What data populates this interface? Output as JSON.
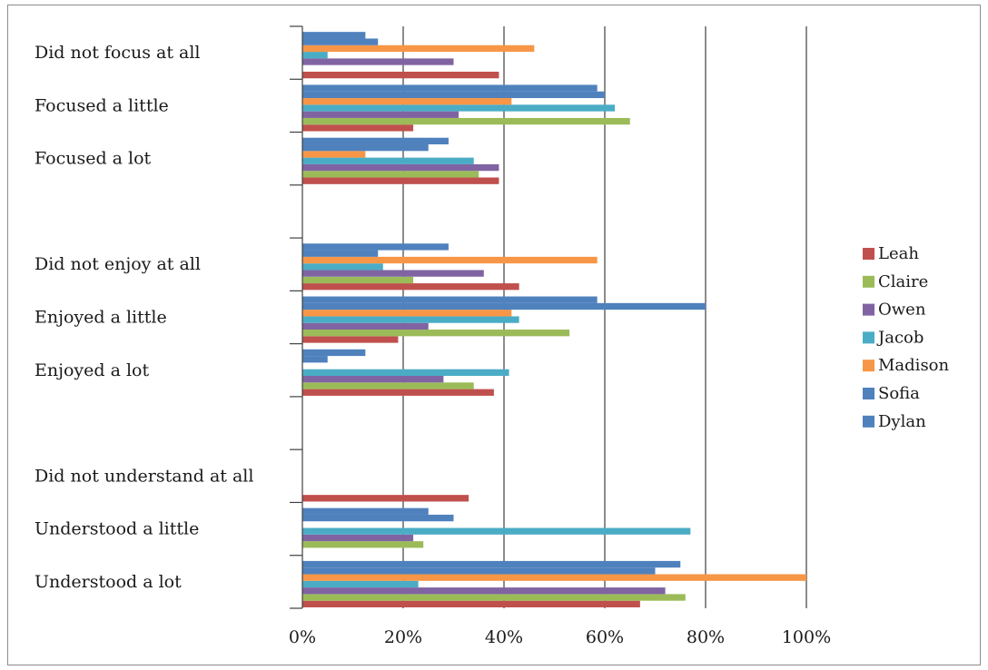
{
  "chart_data": {
    "type": "bar",
    "orientation": "horizontal",
    "categories": [
      "Did not focus at all",
      "Focused a little",
      "Focused a lot",
      "",
      "Did not enjoy at all",
      "Enjoyed a little",
      "Enjoyed a lot",
      "",
      "Did not understand at all",
      "Understood a little",
      "Understood a lot"
    ],
    "series": [
      {
        "name": "Leah",
        "color": "#C0504D",
        "values": [
          39,
          22,
          39,
          null,
          43,
          19,
          38,
          null,
          33,
          0,
          67
        ]
      },
      {
        "name": "Claire",
        "color": "#9BBB59",
        "values": [
          0,
          65,
          35,
          null,
          22,
          53,
          34,
          null,
          0,
          24,
          76
        ]
      },
      {
        "name": "Owen",
        "color": "#8064A2",
        "values": [
          30,
          31,
          39,
          null,
          36,
          25,
          28,
          null,
          0,
          22,
          72
        ]
      },
      {
        "name": "Jacob",
        "color": "#4BACC6",
        "values": [
          5,
          62,
          34,
          null,
          16,
          43,
          41,
          null,
          0,
          77,
          23
        ]
      },
      {
        "name": "Madison",
        "color": "#F79646",
        "values": [
          46,
          41.5,
          12.5,
          null,
          58.5,
          41.5,
          0,
          null,
          0,
          0,
          100
        ]
      },
      {
        "name": "Sofia",
        "color": "#4F81BD",
        "values": [
          15,
          60,
          25,
          null,
          15,
          80,
          5,
          null,
          0,
          30,
          70
        ]
      },
      {
        "name": "Dylan",
        "color": "#4F81BD",
        "values": [
          12.5,
          58.5,
          29,
          null,
          29,
          58.5,
          12.5,
          null,
          0,
          25,
          75
        ]
      }
    ],
    "xlim": [
      0,
      100
    ],
    "x_ticks": [
      "0%",
      "20%",
      "40%",
      "60%",
      "80%",
      "100%"
    ],
    "grid": "vertical",
    "legend_position": "right"
  }
}
